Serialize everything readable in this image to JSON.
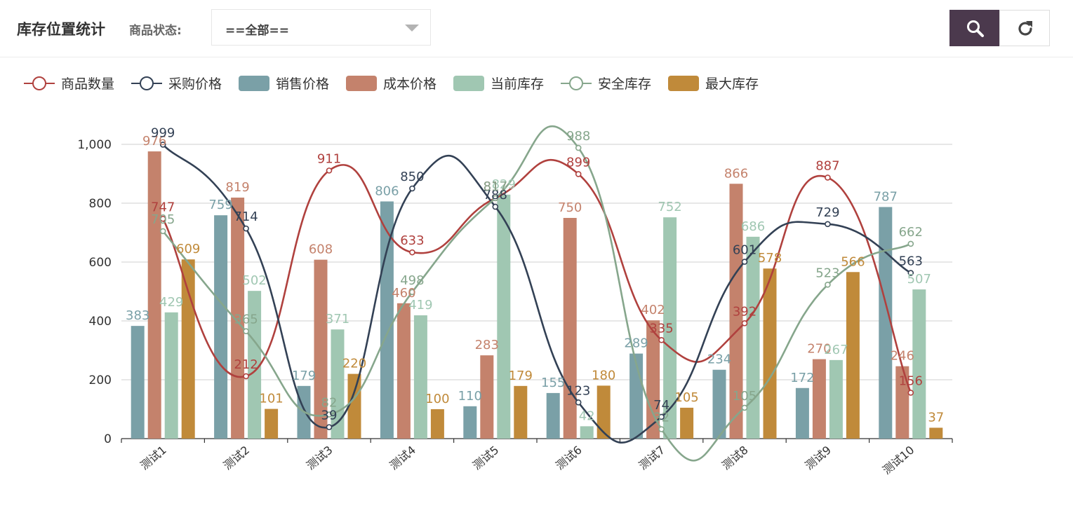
{
  "header": {
    "title": "库存位置统计",
    "status_label": "商品状态:",
    "status_value": "==全部==",
    "search_icon": "search-icon",
    "refresh_icon": "refresh-icon"
  },
  "colors": {
    "商品数量": "#b0413e",
    "采购价格": "#334155",
    "销售价格": "#7aa0a7",
    "成本价格": "#c4826c",
    "当前库存": "#a0c7b2",
    "安全库存": "#86a68c",
    "最大库存": "#c08a3a",
    "search_button": "#4b394d"
  },
  "chart_data": {
    "type": "bar",
    "categories": [
      "测试1",
      "测试2",
      "测试3",
      "测试4",
      "测试5",
      "测试6",
      "测试7",
      "测试8",
      "测试9",
      "测试10"
    ],
    "ylim": [
      0,
      1000
    ],
    "yticks": [
      0,
      200,
      400,
      600,
      800,
      1000
    ],
    "ytick_labels": [
      "0",
      "200",
      "400",
      "600",
      "800",
      "1,000"
    ],
    "grid": true,
    "legend_position": "top-left",
    "series": [
      {
        "name": "商品数量",
        "kind": "line",
        "values": [
          747,
          212,
          911,
          633,
          817,
          899,
          335,
          392,
          887,
          156
        ]
      },
      {
        "name": "采购价格",
        "kind": "line",
        "values": [
          999,
          714,
          39,
          850,
          788,
          123,
          74,
          601,
          729,
          563
        ]
      },
      {
        "name": "销售价格",
        "kind": "bar",
        "values": [
          383,
          759,
          179,
          806,
          110,
          155,
          289,
          234,
          172,
          787
        ]
      },
      {
        "name": "成本价格",
        "kind": "bar",
        "values": [
          976,
          819,
          608,
          460,
          283,
          750,
          402,
          866,
          270,
          246
        ]
      },
      {
        "name": "当前库存",
        "kind": "bar",
        "values": [
          429,
          502,
          371,
          419,
          829,
          42,
          752,
          686,
          267,
          507
        ]
      },
      {
        "name": "安全库存",
        "kind": "line",
        "values": [
          705,
          365,
          82,
          498,
          817,
          988,
          32,
          105,
          523,
          662
        ]
      },
      {
        "name": "最大库存",
        "kind": "bar",
        "values": [
          609,
          101,
          220,
          100,
          179,
          180,
          105,
          578,
          566,
          37
        ]
      }
    ]
  }
}
